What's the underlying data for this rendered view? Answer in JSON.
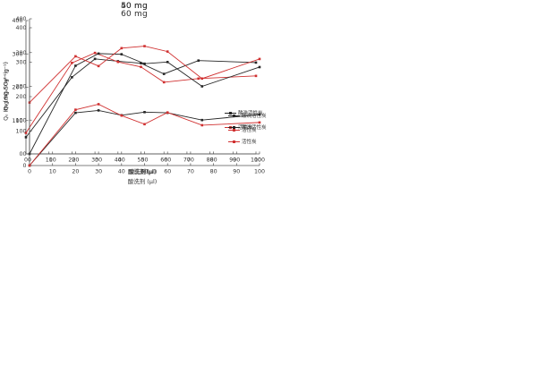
{
  "page": {
    "background": "#ffffff",
    "text_color": "#333333",
    "axis_color": "#555555"
  },
  "chart_data": [
    {
      "type": "line",
      "title": "40 mg",
      "xlabel": "酸洗剂(μl)",
      "ylabel": "Qₑ (mg SO₄²⁻·g⁻¹)",
      "xlim": [
        0,
        100
      ],
      "ylim": [
        0,
        400
      ],
      "xticks": [
        0,
        10,
        20,
        30,
        40,
        50,
        60,
        70,
        80,
        90,
        100
      ],
      "yticks": [
        0,
        100,
        200,
        300,
        400
      ],
      "grid": false,
      "legend_position": "right-middle-inside",
      "x": [
        0,
        20,
        30,
        40,
        50,
        60,
        75,
        100
      ],
      "series": [
        {
          "name": "酸洗活性炭",
          "color": "#262626",
          "marker": "square",
          "values": [
            50,
            230,
            285,
            278,
            272,
            240,
            280,
            274
          ]
        },
        {
          "name": "活性炭",
          "color": "#d03030",
          "marker": "square",
          "values": [
            63,
            273,
            303,
            276,
            261,
            215,
            226,
            234
          ]
        }
      ]
    },
    {
      "type": "line",
      "title": "50 mg",
      "xlabel": "酸洗剂 (μl)",
      "ylabel": "Qₑ (mg SO₄²⁻·g⁻¹)",
      "xlim": [
        0,
        100
      ],
      "ylim": [
        0,
        400
      ],
      "xticks": [
        0,
        10,
        20,
        30,
        40,
        50,
        60,
        70,
        80,
        90,
        100
      ],
      "yticks": [
        0,
        100,
        200,
        300,
        400
      ],
      "grid": false,
      "legend_position": "right-middle-inside",
      "x": [
        0,
        20,
        30,
        40,
        50,
        60,
        75,
        100
      ],
      "series": [
        {
          "name": "酸洗活性炭",
          "color": "#262626",
          "marker": "square",
          "values": [
            0,
            261,
            297,
            295,
            267,
            272,
            200,
            257
          ]
        },
        {
          "name": "活性炭",
          "color": "#d03030",
          "marker": "square",
          "values": [
            152,
            289,
            260,
            313,
            319,
            303,
            223,
            281
          ]
        }
      ]
    },
    {
      "type": "line",
      "title": "60 mg",
      "xlabel": "酸洗剂 (μl)",
      "ylabel": "Qₑ (mg SO₄²⁻·g⁻¹)",
      "xlim": [
        0,
        100
      ],
      "ylim": [
        0,
        400
      ],
      "xticks": [
        0,
        10,
        20,
        30,
        40,
        50,
        60,
        70,
        80,
        90,
        100
      ],
      "yticks": [
        0,
        100,
        200,
        300,
        400
      ],
      "grid": false,
      "legend_position": "right-lower-inside",
      "x": [
        0,
        20,
        30,
        40,
        50,
        60,
        75,
        100
      ],
      "series": [
        {
          "name": "酸洗活性炭",
          "color": "#262626",
          "marker": "square",
          "values": [
            0,
            153,
            160,
            146,
            155,
            153,
            132,
            148
          ]
        },
        {
          "name": "活性炭",
          "color": "#d03030",
          "marker": "square",
          "values": [
            0,
            162,
            178,
            145,
            120,
            154,
            117,
            125
          ]
        }
      ]
    }
  ]
}
